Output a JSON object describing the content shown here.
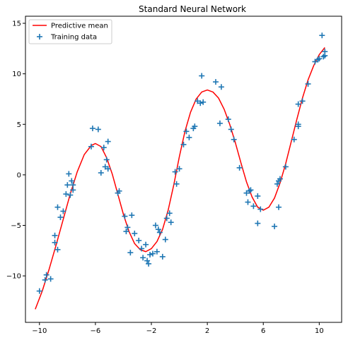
{
  "chart_data": {
    "type": "scatter",
    "title": "Standard Neural Network",
    "xlabel": "",
    "ylabel": "",
    "xlim": [
      -11.0,
      11.6
    ],
    "ylim": [
      -14.6,
      15.7
    ],
    "xticks": [
      -10,
      -6,
      -2,
      2,
      6,
      10
    ],
    "yticks": [
      -10,
      -5,
      0,
      5,
      10,
      15
    ],
    "grid": false,
    "legend_position": "top-left",
    "series": [
      {
        "name": "Predictive mean",
        "kind": "line",
        "color": "#ff0000",
        "points": [
          [
            -10.3,
            -13.3
          ],
          [
            -9.8,
            -11.5
          ],
          [
            -9.3,
            -9.3
          ],
          [
            -8.8,
            -6.9
          ],
          [
            -8.3,
            -4.4
          ],
          [
            -7.8,
            -1.9
          ],
          [
            -7.3,
            0.3
          ],
          [
            -6.8,
            2.0
          ],
          [
            -6.3,
            2.9
          ],
          [
            -6.0,
            3.1
          ],
          [
            -5.6,
            2.8
          ],
          [
            -5.2,
            1.7
          ],
          [
            -4.8,
            0.1
          ],
          [
            -4.4,
            -1.9
          ],
          [
            -4.0,
            -3.9
          ],
          [
            -3.6,
            -5.6
          ],
          [
            -3.2,
            -6.8
          ],
          [
            -2.8,
            -7.4
          ],
          [
            -2.4,
            -7.6
          ],
          [
            -2.0,
            -7.3
          ],
          [
            -1.6,
            -6.6
          ],
          [
            -1.2,
            -5.4
          ],
          [
            -0.8,
            -3.5
          ],
          [
            -0.4,
            -1.0
          ],
          [
            0.0,
            1.8
          ],
          [
            0.4,
            4.3
          ],
          [
            0.8,
            6.2
          ],
          [
            1.2,
            7.5
          ],
          [
            1.6,
            8.2
          ],
          [
            2.0,
            8.4
          ],
          [
            2.4,
            8.2
          ],
          [
            2.8,
            7.6
          ],
          [
            3.2,
            6.5
          ],
          [
            3.6,
            5.0
          ],
          [
            4.0,
            3.2
          ],
          [
            4.4,
            1.2
          ],
          [
            4.8,
            -0.7
          ],
          [
            5.2,
            -2.2
          ],
          [
            5.6,
            -3.2
          ],
          [
            6.0,
            -3.5
          ],
          [
            6.4,
            -3.2
          ],
          [
            6.8,
            -2.3
          ],
          [
            7.2,
            -0.8
          ],
          [
            7.6,
            1.1
          ],
          [
            8.0,
            3.3
          ],
          [
            8.4,
            5.5
          ],
          [
            8.8,
            7.6
          ],
          [
            9.2,
            9.4
          ],
          [
            9.6,
            10.8
          ],
          [
            10.0,
            11.9
          ],
          [
            10.4,
            12.6
          ]
        ]
      },
      {
        "name": "Training data",
        "kind": "scatter",
        "marker": "+",
        "color": "#1f77b4",
        "points": [
          [
            -10.0,
            -11.5
          ],
          [
            -9.6,
            -10.4
          ],
          [
            -9.5,
            -9.9
          ],
          [
            -9.2,
            -10.3
          ],
          [
            -8.9,
            -6.7
          ],
          [
            -8.9,
            -6.0
          ],
          [
            -8.7,
            -7.4
          ],
          [
            -8.7,
            -3.2
          ],
          [
            -8.5,
            -4.2
          ],
          [
            -8.3,
            -3.6
          ],
          [
            -8.1,
            -1.9
          ],
          [
            -8.0,
            -1.0
          ],
          [
            -7.9,
            0.1
          ],
          [
            -7.8,
            -2.0
          ],
          [
            -7.7,
            -0.6
          ],
          [
            -7.6,
            -1.5
          ],
          [
            -7.6,
            -1.0
          ],
          [
            -6.2,
            4.6
          ],
          [
            -6.3,
            2.8
          ],
          [
            -5.8,
            4.5
          ],
          [
            -5.6,
            0.2
          ],
          [
            -5.4,
            2.7
          ],
          [
            -5.3,
            0.8
          ],
          [
            -5.2,
            1.5
          ],
          [
            -5.1,
            3.3
          ],
          [
            -5.1,
            0.6
          ],
          [
            -4.4,
            -1.8
          ],
          [
            -4.3,
            -1.6
          ],
          [
            -3.9,
            -4.1
          ],
          [
            -3.8,
            -5.6
          ],
          [
            -3.7,
            -5.2
          ],
          [
            -3.5,
            -7.7
          ],
          [
            -3.4,
            -4.0
          ],
          [
            -3.2,
            -5.8
          ],
          [
            -2.9,
            -6.5
          ],
          [
            -2.7,
            -7.3
          ],
          [
            -2.6,
            -8.2
          ],
          [
            -2.4,
            -6.9
          ],
          [
            -2.3,
            -8.5
          ],
          [
            -2.2,
            -8.8
          ],
          [
            -2.1,
            -7.9
          ],
          [
            -1.9,
            -7.8
          ],
          [
            -1.7,
            -5.0
          ],
          [
            -1.6,
            -7.6
          ],
          [
            -1.5,
            -5.4
          ],
          [
            -1.4,
            -5.7
          ],
          [
            -1.2,
            -8.1
          ],
          [
            -1.0,
            -6.4
          ],
          [
            -0.9,
            -4.3
          ],
          [
            -0.7,
            -3.8
          ],
          [
            -0.6,
            -4.7
          ],
          [
            -0.3,
            0.3
          ],
          [
            -0.2,
            -0.9
          ],
          [
            0.0,
            0.6
          ],
          [
            0.3,
            3.0
          ],
          [
            0.5,
            4.3
          ],
          [
            0.7,
            3.7
          ],
          [
            1.0,
            4.6
          ],
          [
            1.1,
            4.8
          ],
          [
            1.3,
            7.3
          ],
          [
            1.5,
            7.1
          ],
          [
            1.6,
            9.8
          ],
          [
            1.7,
            7.2
          ],
          [
            2.6,
            9.2
          ],
          [
            2.9,
            5.1
          ],
          [
            3.0,
            8.7
          ],
          [
            3.5,
            5.5
          ],
          [
            3.7,
            4.5
          ],
          [
            3.9,
            3.5
          ],
          [
            4.3,
            0.7
          ],
          [
            4.8,
            -1.8
          ],
          [
            4.9,
            -2.7
          ],
          [
            5.0,
            -1.6
          ],
          [
            5.1,
            -1.5
          ],
          [
            5.3,
            -3.1
          ],
          [
            5.6,
            -2.1
          ],
          [
            5.6,
            -4.8
          ],
          [
            5.8,
            -3.4
          ],
          [
            6.8,
            -5.1
          ],
          [
            7.0,
            -0.9
          ],
          [
            7.1,
            -0.6
          ],
          [
            7.1,
            -3.2
          ],
          [
            7.2,
            -0.4
          ],
          [
            7.6,
            0.8
          ],
          [
            8.2,
            3.5
          ],
          [
            8.5,
            4.8
          ],
          [
            8.5,
            5.0
          ],
          [
            8.5,
            7.0
          ],
          [
            8.8,
            7.3
          ],
          [
            9.2,
            9.0
          ],
          [
            9.7,
            11.2
          ],
          [
            9.9,
            11.4
          ],
          [
            10.0,
            11.5
          ],
          [
            10.2,
            13.8
          ],
          [
            10.3,
            11.7
          ],
          [
            10.4,
            11.8
          ],
          [
            10.4,
            12.2
          ]
        ]
      }
    ]
  }
}
